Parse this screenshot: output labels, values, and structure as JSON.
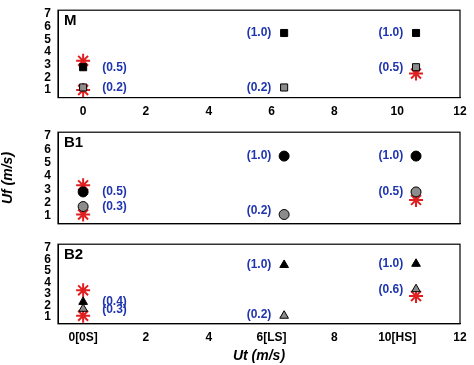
{
  "chart_data": [
    {
      "type": "scatter",
      "title": "M",
      "xlim": [
        -0.8,
        12
      ],
      "xticks": [
        0,
        2,
        4,
        6,
        8,
        10,
        12
      ],
      "ylim": [
        0.4,
        7.3
      ],
      "yticks": [
        1,
        2,
        3,
        4,
        5,
        6,
        7
      ],
      "grid": false,
      "series": [
        {
          "marker": "square",
          "color": "#000000",
          "x": [
            0,
            6.4,
            10.6
          ],
          "values": [
            2.8,
            5.5,
            5.5
          ]
        },
        {
          "marker": "square",
          "color": "#8c8c8c",
          "x": [
            0,
            6.4,
            10.6
          ],
          "values": [
            1.2,
            1.2,
            2.8
          ]
        },
        {
          "marker": "star",
          "color": "#e02020",
          "x": [
            0,
            0,
            10.6
          ],
          "values": [
            3.3,
            1.0,
            2.3
          ]
        }
      ],
      "annotations": [
        {
          "x": 1.0,
          "y": 2.8,
          "text": "(0.5)"
        },
        {
          "x": 1.0,
          "y": 1.2,
          "text": "(0.2)"
        },
        {
          "x": 5.6,
          "y": 5.5,
          "text": "(1.0)"
        },
        {
          "x": 5.6,
          "y": 1.2,
          "text": "(0.2)"
        },
        {
          "x": 9.8,
          "y": 5.5,
          "text": "(1.0)"
        },
        {
          "x": 9.8,
          "y": 2.8,
          "text": "(0.5)"
        }
      ]
    },
    {
      "type": "scatter",
      "title": "B1",
      "ylabel": "Uf (m/s)",
      "tick_labels": "y",
      "xlim": [
        -0.8,
        12
      ],
      "xticks": [
        0,
        2,
        4,
        6,
        8,
        10,
        12
      ],
      "ylim": [
        0.4,
        7.3
      ],
      "yticks": [
        1,
        2,
        3,
        4,
        5,
        6,
        7
      ],
      "grid": false,
      "series": [
        {
          "marker": "circle",
          "color": "#000000",
          "x": [
            0,
            6.4,
            10.6
          ],
          "values": [
            2.8,
            5.5,
            5.5
          ]
        },
        {
          "marker": "circle",
          "color": "#8c8c8c",
          "x": [
            0,
            6.4,
            10.6
          ],
          "values": [
            1.7,
            1.1,
            2.8
          ]
        },
        {
          "marker": "star",
          "color": "#e02020",
          "x": [
            0,
            0,
            10.6
          ],
          "values": [
            3.3,
            1.1,
            2.2
          ]
        }
      ],
      "annotations": [
        {
          "x": 1.0,
          "y": 2.8,
          "text": "(0.5)"
        },
        {
          "x": 1.0,
          "y": 1.7,
          "text": "(0.3)"
        },
        {
          "x": 5.6,
          "y": 5.5,
          "text": "(1.0)"
        },
        {
          "x": 5.6,
          "y": 1.4,
          "text": "(0.2)"
        },
        {
          "x": 9.8,
          "y": 5.5,
          "text": "(1.0)"
        },
        {
          "x": 9.8,
          "y": 2.8,
          "text": "(0.5)"
        }
      ]
    },
    {
      "type": "scatter",
      "title": "B2",
      "xlabel": "Ut (m/s)",
      "xlim": [
        -0.8,
        12
      ],
      "xticks": [
        {
          "value": 0,
          "label": "0[0S]"
        },
        2,
        4,
        {
          "value": 6,
          "label": "6[LS]"
        },
        8,
        {
          "value": 10,
          "label": "10[HS]"
        },
        12
      ],
      "ylim": [
        0.4,
        7.3
      ],
      "yticks": [
        1,
        2,
        3,
        4,
        5,
        6,
        7
      ],
      "grid": false,
      "series": [
        {
          "marker": "triangle",
          "color": "#000000",
          "x": [
            0,
            6.4,
            10.6
          ],
          "values": [
            2.3,
            5.5,
            5.6
          ]
        },
        {
          "marker": "triangle",
          "color": "#8c8c8c",
          "x": [
            0,
            6.4,
            10.6
          ],
          "values": [
            1.7,
            1.1,
            3.4
          ]
        },
        {
          "marker": "star",
          "color": "#e02020",
          "x": [
            0,
            0,
            10.6
          ],
          "values": [
            3.3,
            1.1,
            2.8
          ]
        }
      ],
      "annotations": [
        {
          "x": 1.0,
          "y": 2.3,
          "text": "(0.4)"
        },
        {
          "x": 1.0,
          "y": 1.6,
          "text": "(0.3)"
        },
        {
          "x": 5.6,
          "y": 5.5,
          "text": "(1.0)"
        },
        {
          "x": 5.6,
          "y": 1.2,
          "text": "(0.2)"
        },
        {
          "x": 9.8,
          "y": 5.6,
          "text": "(1.0)"
        },
        {
          "x": 9.8,
          "y": 3.4,
          "text": "(0.6)"
        }
      ]
    }
  ]
}
